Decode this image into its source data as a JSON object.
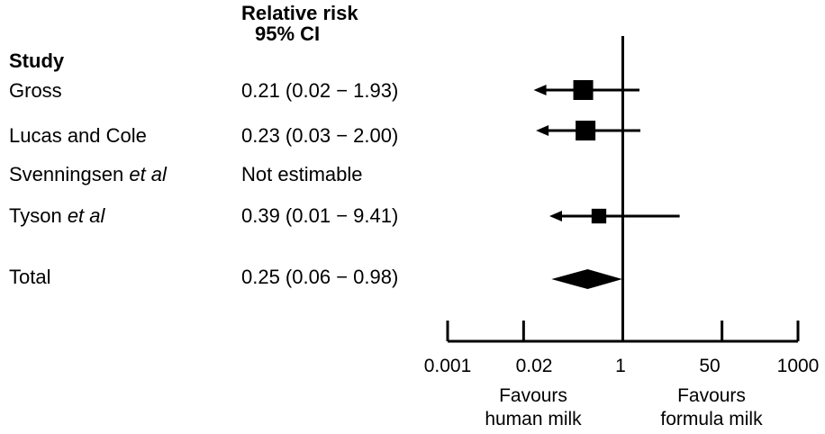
{
  "chart_data": {
    "type": "forest",
    "headers": {
      "study": "Study",
      "rr_line1": "Relative risk",
      "rr_line2": "95% CI"
    },
    "rows": [
      {
        "study": "Gross",
        "study_suffix": "",
        "ci_text": "0.21 (0.02 − 1.93)",
        "estimate": 0.21,
        "lower": 0.02,
        "upper": 1.93,
        "weight": 1.0,
        "lower_arrow": true
      },
      {
        "study": "Lucas and Cole",
        "study_suffix": "",
        "ci_text": "0.23 (0.03 − 2.00)",
        "estimate": 0.23,
        "lower": 0.03,
        "upper": 2.0,
        "weight": 1.0,
        "lower_arrow": true
      },
      {
        "study": "Svenningsen ",
        "study_suffix": "et al",
        "ci_text": "Not estimable",
        "estimate": null,
        "lower": null,
        "upper": null,
        "weight": 0,
        "lower_arrow": false
      },
      {
        "study": "Tyson ",
        "study_suffix": "et al",
        "ci_text": "0.39 (0.01 − 9.41)",
        "estimate": 0.39,
        "lower": 0.01,
        "upper": 9.41,
        "weight": 0.55,
        "lower_arrow": true
      }
    ],
    "total": {
      "study": "Total",
      "ci_text": "0.25 (0.06 − 0.98)",
      "estimate": 0.25,
      "lower": 0.06,
      "upper": 0.98
    },
    "x_axis": {
      "scale": "log",
      "ticks": [
        0.001,
        0.02,
        1,
        50,
        1000
      ],
      "tick_labels": [
        "0.001",
        "0.02",
        "1",
        "50",
        "1000"
      ],
      "reference_line": 1
    },
    "annotations": {
      "left_line1": "Favours",
      "left_line2": "human milk",
      "right_line1": "Favours",
      "right_line2": "formula milk"
    }
  }
}
